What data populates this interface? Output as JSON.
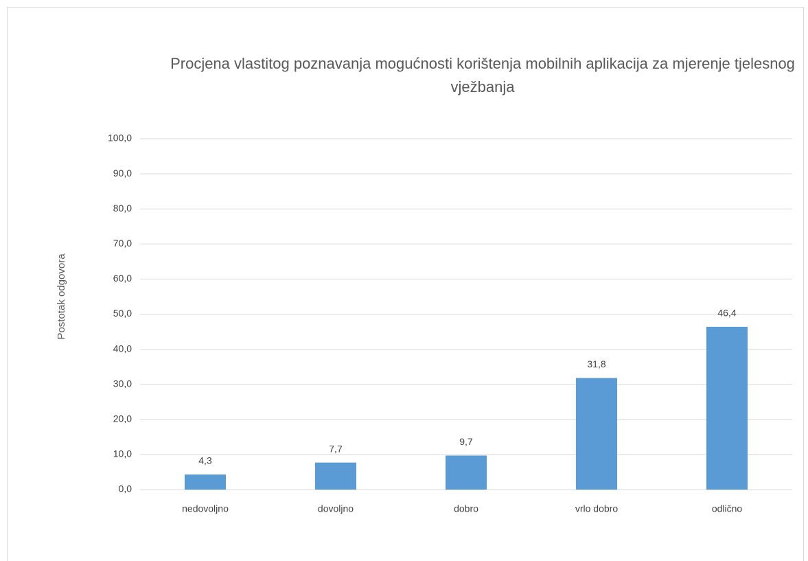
{
  "chart_data": {
    "type": "bar",
    "title": "Procjena vlastitog poznavanja mogućnosti korištenja mobilnih aplikacija za mjerenje tjelesnog vježbanja",
    "y_label": "Postotak odgovora",
    "categories": [
      "nedovoljno",
      "dovoljno",
      "dobro",
      "vrlo dobro",
      "odlično"
    ],
    "values": [
      4.3,
      7.7,
      9.7,
      31.8,
      46.4
    ],
    "value_labels": [
      "4,3",
      "7,7",
      "9,7",
      "31,8",
      "46,4"
    ],
    "color": "#5b9bd5",
    "ylim": [
      0,
      100
    ],
    "yticks": [
      {
        "value": 0,
        "label": "0,0"
      },
      {
        "value": 10,
        "label": "10,0"
      },
      {
        "value": 20,
        "label": "20,0"
      },
      {
        "value": 30,
        "label": "30,0"
      },
      {
        "value": 40,
        "label": "40,0"
      },
      {
        "value": 50,
        "label": "50,0"
      },
      {
        "value": 60,
        "label": "60,0"
      },
      {
        "value": 70,
        "label": "70,0"
      },
      {
        "value": 80,
        "label": "80,0"
      },
      {
        "value": 90,
        "label": "90,0"
      },
      {
        "value": 100,
        "label": "100,0"
      }
    ],
    "grid": true
  }
}
